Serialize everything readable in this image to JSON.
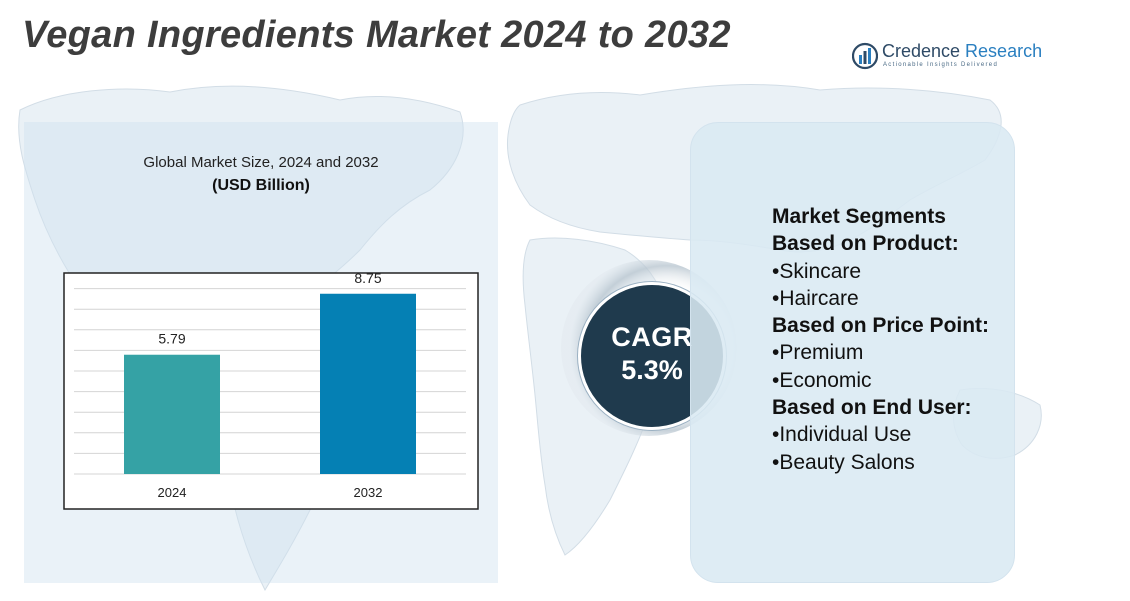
{
  "title": "Vegan Ingredients Market 2024 to 2032",
  "logo": {
    "name_main": "Credence",
    "name_accent": " Research",
    "tagline": "Actionable Insights Delivered"
  },
  "chart": {
    "heading": "Global Market Size, 2024 and 2032",
    "unit_label": "(USD Billion)"
  },
  "chart_data": {
    "type": "bar",
    "categories": [
      "2024",
      "2032"
    ],
    "values": [
      5.79,
      8.75
    ],
    "value_labels": [
      "5.79",
      "8.75"
    ],
    "colors": [
      "#35a2a5",
      "#0580b4"
    ],
    "title": "Global Market Size, 2024 and 2032",
    "ylabel": "(USD Billion)",
    "ylim": [
      0,
      10
    ],
    "grid": true
  },
  "cagr": {
    "label": "CAGR",
    "value": "5.3%"
  },
  "segments": {
    "heading": "Market Segments",
    "groups": [
      {
        "title": "Based on Product:",
        "items": [
          "•Skincare",
          "•Haircare"
        ]
      },
      {
        "title": "Based on Price Point:",
        "items": [
          "•Premium",
          "•Economic"
        ]
      },
      {
        "title": "Based on End User:",
        "items": [
          "•Individual Use",
          "•Beauty Salons"
        ]
      }
    ]
  },
  "colors": {
    "title_text": "#3d3d3d",
    "cagr_bg": "#1f3a4d",
    "panel_bg": "#dae9f3",
    "brand": "#2a7fc0"
  }
}
